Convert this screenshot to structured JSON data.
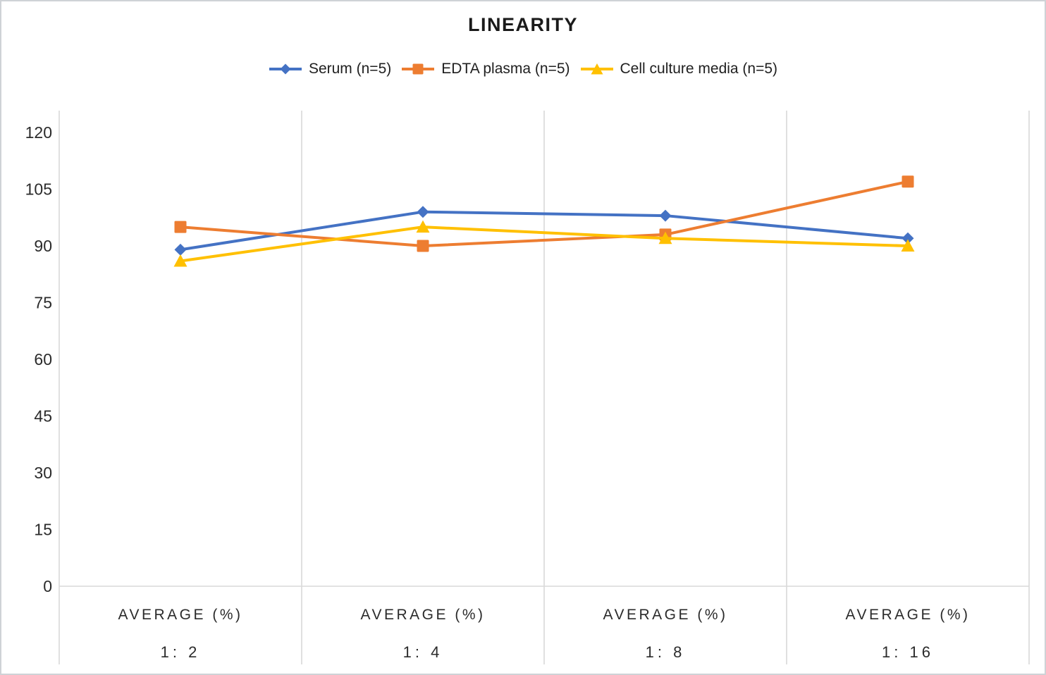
{
  "chart_data": {
    "type": "line",
    "title": "LINEARITY",
    "x_group_label": "AVERAGE (%)",
    "categories": [
      "1: 2",
      "1: 4",
      "1: 8",
      "1: 16"
    ],
    "series": [
      {
        "name": "Serum (n=5)",
        "marker": "diamond",
        "color": "#4472C4",
        "values": [
          89,
          99,
          98,
          92
        ]
      },
      {
        "name": "EDTA plasma (n=5)",
        "marker": "square",
        "color": "#ED7D31",
        "values": [
          95,
          90,
          93,
          107
        ]
      },
      {
        "name": "Cell culture media (n=5)",
        "marker": "triangle",
        "color": "#FFC000",
        "values": [
          86,
          95,
          92,
          90
        ]
      }
    ],
    "yticks": [
      0,
      15,
      30,
      45,
      60,
      75,
      90,
      105,
      120
    ],
    "ylim": [
      0,
      126
    ],
    "xlabel": "",
    "ylabel": "",
    "grid": "vertical-only",
    "legend_position": "top",
    "gridline_color": "#D9D9D9",
    "text_color": "#2b2b2b"
  }
}
